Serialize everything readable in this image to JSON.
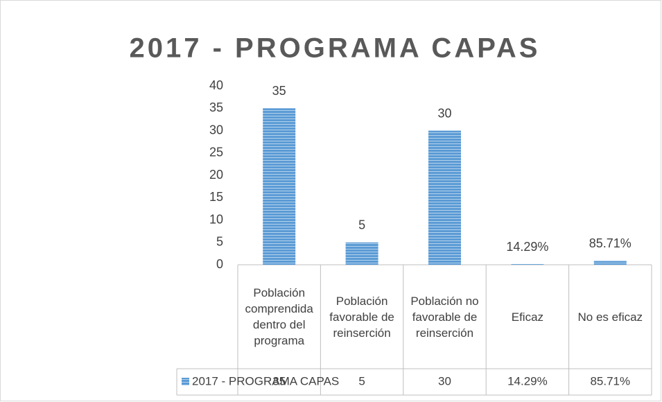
{
  "chart_data": {
    "type": "bar",
    "title": "2017 - PROGRAMA CAPAS",
    "categories": [
      "Población comprendida dentro del programa",
      "Población favorable de reinserción",
      "Población no favorable de reinserción",
      "Eficaz",
      "No es eficaz"
    ],
    "series": [
      {
        "name": "2017 - PROGRAMA CAPAS",
        "color": "#5b9bd5",
        "values": [
          35,
          5,
          30,
          0.1429,
          0.8571
        ],
        "value_labels": [
          "35",
          "5",
          "30",
          "14.29%",
          "85.71%"
        ]
      }
    ],
    "ylim": [
      0,
      40
    ],
    "yticks": [
      0,
      5,
      10,
      15,
      20,
      25,
      30,
      35,
      40
    ],
    "grid": false,
    "data_table": true
  }
}
